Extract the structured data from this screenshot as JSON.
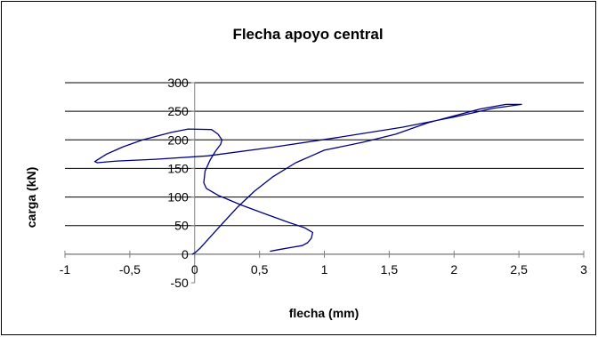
{
  "chart_data": {
    "type": "line",
    "title": "Flecha apoyo central",
    "xlabel": "flecha (mm)",
    "ylabel": "carga (kN)",
    "xlim": [
      -1,
      3
    ],
    "ylim": [
      -50,
      300
    ],
    "xticks": [
      -1,
      -0.5,
      0,
      0.5,
      1,
      1.5,
      2,
      2.5,
      3
    ],
    "xtick_labels": [
      "-1",
      "-0,5",
      "0",
      "0,5",
      "1",
      "1,5",
      "2",
      "2,5",
      "3"
    ],
    "yticks": [
      -50,
      0,
      50,
      100,
      150,
      200,
      250,
      300
    ],
    "ytick_labels": [
      "-50",
      "0",
      "50",
      "100",
      "150",
      "200",
      "250",
      "300"
    ],
    "grid": true,
    "line_color": "#000080",
    "series": [
      {
        "points": [
          [
            0.58,
            5
          ],
          [
            0.65,
            8
          ],
          [
            0.75,
            12
          ],
          [
            0.83,
            15
          ],
          [
            0.87,
            20
          ],
          [
            0.9,
            28
          ],
          [
            0.91,
            38
          ],
          [
            0.85,
            46
          ],
          [
            0.72,
            56
          ],
          [
            0.55,
            70
          ],
          [
            0.36,
            86
          ],
          [
            0.18,
            103
          ],
          [
            0.09,
            115
          ],
          [
            0.07,
            125
          ],
          [
            0.08,
            145
          ],
          [
            0.12,
            165
          ],
          [
            0.16,
            180
          ],
          [
            0.2,
            192
          ],
          [
            0.21,
            200
          ],
          [
            0.18,
            210
          ],
          [
            0.13,
            218
          ],
          [
            -0.05,
            219
          ],
          [
            -0.18,
            213
          ],
          [
            -0.4,
            200
          ],
          [
            -0.55,
            188
          ],
          [
            -0.68,
            175
          ],
          [
            -0.77,
            162
          ],
          [
            -0.75,
            160
          ],
          [
            -0.6,
            163
          ],
          [
            -0.3,
            166
          ],
          [
            0.1,
            172
          ],
          [
            0.6,
            187
          ],
          [
            1.1,
            204
          ],
          [
            1.6,
            222
          ],
          [
            2.0,
            240
          ],
          [
            2.3,
            255
          ],
          [
            2.52,
            262
          ],
          [
            2.4,
            262
          ],
          [
            2.2,
            254
          ],
          [
            1.8,
            230
          ],
          [
            1.55,
            210
          ],
          [
            1.3,
            196
          ],
          [
            1.0,
            182
          ],
          [
            0.9,
            172
          ],
          [
            0.78,
            160
          ],
          [
            0.6,
            135
          ],
          [
            0.46,
            110
          ],
          [
            0.33,
            82
          ],
          [
            0.22,
            55
          ],
          [
            0.12,
            30
          ],
          [
            0.04,
            10
          ],
          [
            0.0,
            2
          ],
          [
            -0.02,
            0
          ]
        ]
      }
    ]
  }
}
